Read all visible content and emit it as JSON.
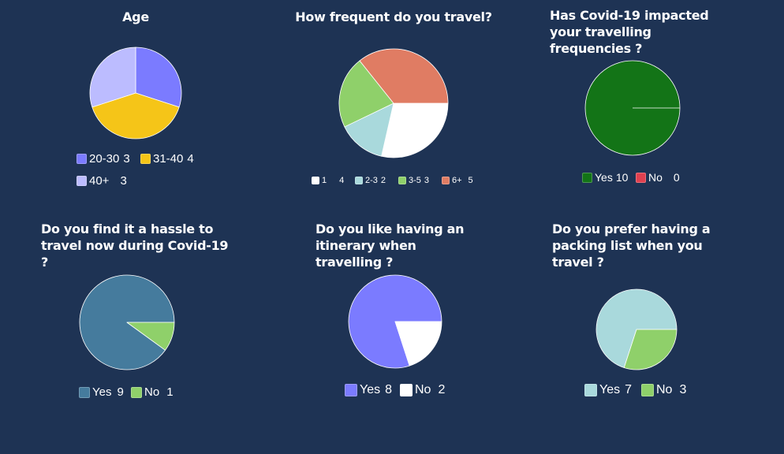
{
  "chart_data": [
    {
      "type": "pie",
      "title": "Age",
      "slices": [
        {
          "label": "20-30",
          "value": 3,
          "color": "#7b7bff"
        },
        {
          "label": "31-40",
          "value": 4,
          "color": "#f5c518"
        },
        {
          "label": "40+",
          "value": 3,
          "color": "#bcbcff"
        }
      ]
    },
    {
      "type": "pie",
      "title": "How frequent do you travel?",
      "slices": [
        {
          "label": "1",
          "value": 4,
          "color": "#ffffff"
        },
        {
          "label": "2-3",
          "value": 2,
          "color": "#a9d9dc"
        },
        {
          "label": "3-5",
          "value": 3,
          "color": "#8fd06a"
        },
        {
          "label": "6+",
          "value": 5,
          "color": "#e07c63"
        }
      ]
    },
    {
      "type": "pie",
      "title": "Has Covid-19 impacted your travelling frequencies ?",
      "slices": [
        {
          "label": "Yes",
          "value": 10,
          "color": "#137417"
        },
        {
          "label": "No",
          "value": 0,
          "color": "#e0404f"
        }
      ]
    },
    {
      "type": "pie",
      "title": "Do you find it a hassle to travel now during Covid-19 ?",
      "slices": [
        {
          "label": "Yes",
          "value": 9,
          "color": "#457b9d"
        },
        {
          "label": "No",
          "value": 1,
          "color": "#8fd06a"
        }
      ]
    },
    {
      "type": "pie",
      "title": "Do you like having an itinerary when travelling ?",
      "slices": [
        {
          "label": "Yes",
          "value": 8,
          "color": "#7b7bff"
        },
        {
          "label": "No",
          "value": 2,
          "color": "#ffffff"
        }
      ]
    },
    {
      "type": "pie",
      "title": "Do you prefer having a packing list when you travel ?",
      "slices": [
        {
          "label": "Yes",
          "value": 7,
          "color": "#a9d9dc"
        },
        {
          "label": "No",
          "value": 3,
          "color": "#8fd06a"
        }
      ]
    }
  ]
}
